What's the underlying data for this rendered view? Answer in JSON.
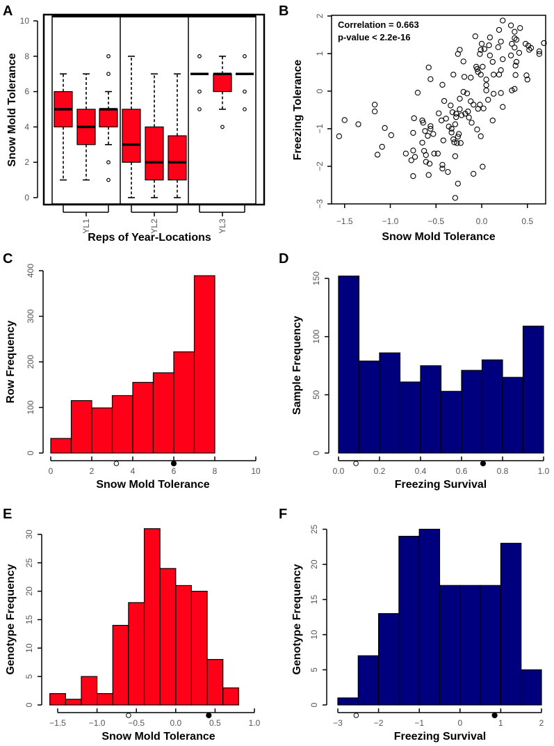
{
  "colors": {
    "red": "#ff0019",
    "navy": "#00007e",
    "outline": "#000000"
  },
  "chart_data": [
    {
      "panel": "A",
      "type": "boxplot",
      "xlabel": "Reps of Year-Locations",
      "ylabel": "Snow Mold Tolerance",
      "ylim": [
        0,
        10
      ],
      "y_ticks": [
        0,
        2,
        4,
        6,
        8,
        10
      ],
      "groups": [
        "YL1",
        "YL2",
        "YL3"
      ],
      "boxes": [
        {
          "group": "YL1",
          "q1": 4,
          "median": 5,
          "q3": 6,
          "low": 1,
          "high": 7,
          "outliers": []
        },
        {
          "group": "YL1",
          "q1": 3,
          "median": 4,
          "q3": 5,
          "low": 1,
          "high": 7,
          "outliers": []
        },
        {
          "group": "YL1",
          "q1": 4,
          "median": 5,
          "q3": 5,
          "low": 3,
          "high": 6,
          "outliers": [
            1,
            2,
            7,
            8
          ]
        },
        {
          "group": "YL2",
          "q1": 2,
          "median": 3,
          "q3": 5,
          "low": 0,
          "high": 8,
          "outliers": []
        },
        {
          "group": "YL2",
          "q1": 1,
          "median": 2,
          "q3": 4,
          "low": 0,
          "high": 7,
          "outliers": []
        },
        {
          "group": "YL2",
          "q1": 1,
          "median": 2,
          "q3": 3.5,
          "low": 0,
          "high": 7,
          "outliers": []
        },
        {
          "group": "YL3",
          "q1": 7,
          "median": 7,
          "q3": 7,
          "low": 7,
          "high": 7,
          "outliers": [
            5,
            6,
            8
          ]
        },
        {
          "group": "YL3",
          "q1": 6,
          "median": 7,
          "q3": 7,
          "low": 5,
          "high": 8,
          "outliers": [
            4
          ]
        },
        {
          "group": "YL3",
          "q1": 7,
          "median": 7,
          "q3": 7,
          "low": 7,
          "high": 7,
          "outliers": [
            5,
            6,
            8
          ]
        }
      ]
    },
    {
      "panel": "B",
      "type": "scatter",
      "xlabel": "Snow Mold Tolerance",
      "ylabel": "Freezing Tolerance",
      "xlim": [
        -1.6,
        0.7
      ],
      "ylim": [
        -3,
        2
      ],
      "x_ticks": [
        -1.5,
        -1.0,
        -0.5,
        0.0,
        0.5
      ],
      "x_tick_labels": [
        "−1.5",
        "−1.0",
        "−0.5",
        "0.0",
        "0.5"
      ],
      "y_ticks": [
        -3,
        -2,
        -1,
        0,
        1,
        2
      ],
      "y_tick_labels": [
        "−3",
        "−2",
        "−1",
        "0",
        "1",
        "2"
      ],
      "annotations": [
        "Correlation = 0.663",
        "p-value < 2.2e-16"
      ],
      "points": [
        [
          -1.56,
          -1.2
        ],
        [
          -1.5,
          -0.77
        ],
        [
          -1.35,
          -0.88
        ],
        [
          -1.17,
          -0.36
        ],
        [
          -1.17,
          -0.54
        ],
        [
          -1.14,
          -1.69
        ],
        [
          -1.09,
          -1.48
        ],
        [
          -1.06,
          -0.98
        ],
        [
          -0.99,
          -1.17
        ],
        [
          -0.83,
          -1.66
        ],
        [
          -0.77,
          -1.84
        ],
        [
          -0.75,
          -2.26
        ],
        [
          -0.75,
          -1.58
        ],
        [
          -0.75,
          -1.11
        ],
        [
          -0.74,
          -0.72
        ],
        [
          -0.73,
          -1.75
        ],
        [
          -0.7,
          -0.04
        ],
        [
          -0.65,
          -1.37
        ],
        [
          -0.65,
          -0.78
        ],
        [
          -0.64,
          -0.84
        ],
        [
          -0.63,
          -1.59
        ],
        [
          -0.62,
          -1.06
        ],
        [
          -0.61,
          -1.7
        ],
        [
          -0.61,
          -1.88
        ],
        [
          -0.59,
          -1.19
        ],
        [
          -0.58,
          0.63
        ],
        [
          -0.58,
          -2.23
        ],
        [
          -0.57,
          -1.93
        ],
        [
          -0.56,
          -1.0
        ],
        [
          -0.56,
          -0.93
        ],
        [
          -0.56,
          0.32
        ],
        [
          -0.53,
          -1.14
        ],
        [
          -0.52,
          -1.66
        ],
        [
          -0.48,
          -1.66
        ],
        [
          -0.47,
          -0.59
        ],
        [
          -0.44,
          -0.78
        ],
        [
          -0.43,
          -2.06
        ],
        [
          -0.43,
          0.17
        ],
        [
          -0.42,
          -1.31
        ],
        [
          -0.43,
          -1.96
        ],
        [
          -0.41,
          -0.26
        ],
        [
          -0.39,
          -0.73
        ],
        [
          -0.37,
          -2.15
        ],
        [
          -0.36,
          -0.94
        ],
        [
          -0.34,
          -0.38
        ],
        [
          -0.33,
          -1.1
        ],
        [
          -0.33,
          -1.0
        ],
        [
          -0.32,
          -0.56
        ],
        [
          -0.31,
          0.44
        ],
        [
          -0.31,
          -1.28
        ],
        [
          -0.3,
          -1.36
        ],
        [
          -0.29,
          -0.88
        ],
        [
          -0.29,
          -1.73
        ],
        [
          -0.29,
          -2.84
        ],
        [
          -0.28,
          -0.6
        ],
        [
          -0.28,
          -0.69
        ],
        [
          -0.27,
          -1.38
        ],
        [
          -0.26,
          0.99
        ],
        [
          -0.26,
          -1.21
        ],
        [
          -0.26,
          -2.46
        ],
        [
          -0.25,
          -1.14
        ],
        [
          -0.24,
          1.1
        ],
        [
          -0.24,
          -0.2
        ],
        [
          -0.24,
          -0.48
        ],
        [
          -0.23,
          -1.38
        ],
        [
          -0.22,
          -0.64
        ],
        [
          -0.2,
          0.79
        ],
        [
          -0.2,
          -0.02
        ],
        [
          -0.19,
          0.38
        ],
        [
          -0.18,
          -0.6
        ],
        [
          -0.16,
          -0.06
        ],
        [
          -0.15,
          -0.54
        ],
        [
          -0.14,
          -0.7
        ],
        [
          -0.12,
          0.36
        ],
        [
          -0.12,
          -0.27
        ],
        [
          -0.11,
          -0.84
        ],
        [
          -0.09,
          -0.36
        ],
        [
          -0.09,
          -2.2
        ],
        [
          -0.07,
          1.46
        ],
        [
          -0.06,
          0.65
        ],
        [
          -0.05,
          -1.02
        ],
        [
          -0.05,
          0.59
        ],
        [
          -0.04,
          -0.47
        ],
        [
          -0.04,
          0.51
        ],
        [
          -0.02,
          -0.36
        ],
        [
          -0.02,
          0.99
        ],
        [
          -0.01,
          0.44
        ],
        [
          -0.01,
          1.1
        ],
        [
          -0.01,
          -1.2
        ],
        [
          0.0,
          1.26
        ],
        [
          0.01,
          0.65
        ],
        [
          0.01,
          -2.01
        ],
        [
          0.02,
          -0.46
        ],
        [
          0.03,
          1.12
        ],
        [
          0.05,
          0.31
        ],
        [
          0.05,
          0.16
        ],
        [
          0.05,
          0.02
        ],
        [
          0.07,
          -0.23
        ],
        [
          0.08,
          1.22
        ],
        [
          0.09,
          1.43
        ],
        [
          0.09,
          0.95
        ],
        [
          0.12,
          0.78
        ],
        [
          0.12,
          -0.78
        ],
        [
          0.13,
          0.44
        ],
        [
          0.13,
          -0.07
        ],
        [
          0.18,
          1.17
        ],
        [
          0.19,
          1.63
        ],
        [
          0.19,
          0.44
        ],
        [
          0.21,
          1.32
        ],
        [
          0.21,
          0.56
        ],
        [
          0.21,
          -0.05
        ],
        [
          0.23,
          1.88
        ],
        [
          0.23,
          0.85
        ],
        [
          0.23,
          -0.42
        ],
        [
          0.32,
          1.75
        ],
        [
          0.32,
          0.95
        ],
        [
          0.33,
          1.26
        ],
        [
          0.33,
          0.02
        ],
        [
          0.36,
          1.16
        ],
        [
          0.36,
          1.58
        ],
        [
          0.36,
          1.41
        ],
        [
          0.37,
          0.68
        ],
        [
          0.37,
          0.43
        ],
        [
          0.36,
          0.06
        ],
        [
          0.38,
          1.37
        ],
        [
          0.38,
          0.78
        ],
        [
          0.41,
          1.02
        ],
        [
          0.42,
          1.68
        ],
        [
          0.48,
          1.26
        ],
        [
          0.49,
          0.42
        ],
        [
          0.5,
          0.31
        ],
        [
          0.51,
          1.21
        ],
        [
          0.52,
          1.1
        ],
        [
          0.54,
          1.15
        ],
        [
          0.63,
          1.06
        ],
        [
          0.63,
          0.99
        ],
        [
          0.68,
          1.28
        ]
      ]
    },
    {
      "panel": "C",
      "type": "bar",
      "histogram": true,
      "color": "red",
      "xlabel": "Snow Mold Tolerance",
      "ylabel": "Row Frequency",
      "bin_start": 0,
      "bin_width": 1,
      "values": [
        32,
        115,
        99,
        126,
        155,
        176,
        222,
        389
      ],
      "x_ticks": [
        0,
        2,
        4,
        6,
        8,
        10
      ],
      "x_tick_labels": [
        "0",
        "2",
        "4",
        "6",
        "8",
        "10"
      ],
      "y_ticks": [
        0,
        100,
        200,
        300,
        400
      ],
      "y_tick_labels": [
        "0",
        "100",
        "200",
        "300",
        "400"
      ],
      "markers": {
        "open": 3.2,
        "filled": 6.0
      }
    },
    {
      "panel": "D",
      "type": "bar",
      "histogram": true,
      "color": "navy",
      "xlabel": "Freezing Survival",
      "ylabel": "Sample Frequency",
      "bin_start": 0,
      "bin_width": 0.1,
      "values": [
        152,
        79,
        86,
        61,
        75,
        53,
        71,
        80,
        65,
        109
      ],
      "x_ticks": [
        0,
        0.2,
        0.4,
        0.6,
        0.8,
        1.0
      ],
      "x_tick_labels": [
        "0.0",
        "0.2",
        "0.4",
        "0.6",
        "0.8",
        "1.0"
      ],
      "y_ticks": [
        0,
        50,
        100,
        150
      ],
      "y_tick_labels": [
        "0",
        "50",
        "100",
        "150"
      ],
      "markers": {
        "open": 0.085,
        "filled": 0.705
      }
    },
    {
      "panel": "E",
      "type": "bar",
      "histogram": true,
      "color": "red",
      "xlabel": "Snow Mold Tolerance",
      "ylabel": "Genotype Frequency",
      "bin_start": -1.6,
      "bin_width": 0.2,
      "values": [
        2,
        1,
        5,
        2,
        14,
        18,
        31,
        24,
        21,
        20,
        8,
        3
      ],
      "x_ticks": [
        -1.5,
        -1.0,
        -0.5,
        0.0,
        0.5,
        1.0
      ],
      "x_tick_labels": [
        "−1.5",
        "−1.0",
        "−0.5",
        "0.0",
        "0.5",
        "1.0"
      ],
      "y_ticks": [
        0,
        5,
        10,
        15,
        20,
        25,
        30
      ],
      "y_tick_labels": [
        "0",
        "5",
        "10",
        "15",
        "20",
        "25",
        "30"
      ],
      "markers": {
        "open": -0.6,
        "filled": 0.42
      }
    },
    {
      "panel": "F",
      "type": "bar",
      "histogram": true,
      "color": "navy",
      "xlabel": "Freezing Survival",
      "ylabel": "Genotype Frequency",
      "bin_start": -3,
      "bin_width": 0.5,
      "values": [
        1,
        7,
        13,
        24,
        25,
        17,
        17,
        17,
        23,
        5
      ],
      "x_ticks": [
        -3,
        -2,
        -1,
        0,
        1,
        2
      ],
      "x_tick_labels": [
        "−3",
        "−2",
        "−1",
        "0",
        "1",
        "2"
      ],
      "y_ticks": [
        0,
        5,
        10,
        15,
        20,
        25
      ],
      "y_tick_labels": [
        "0",
        "5",
        "10",
        "15",
        "20",
        "25"
      ],
      "markers": {
        "open": -2.55,
        "filled": 0.85
      }
    }
  ]
}
